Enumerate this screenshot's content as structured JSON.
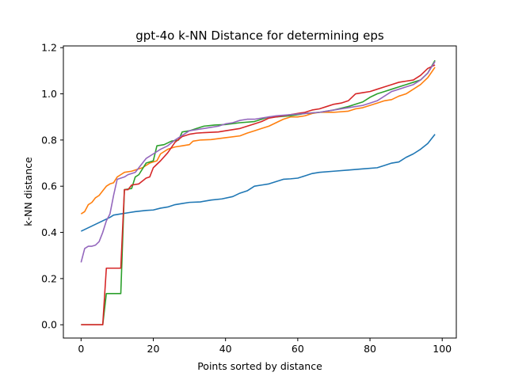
{
  "chart_data": {
    "type": "line",
    "title": "gpt-4o k-NN Distance for determining eps",
    "xlabel": "Points sorted by distance",
    "ylabel": "k-NN distance",
    "xlim": [
      -4.9,
      103.9
    ],
    "ylim": [
      -0.0575,
      1.2075
    ],
    "xticks": [
      0,
      20,
      40,
      60,
      80,
      100
    ],
    "yticks": [
      0.0,
      0.2,
      0.4,
      0.6,
      0.8,
      1.0,
      1.2
    ],
    "xtick_labels": [
      "0",
      "20",
      "40",
      "60",
      "80",
      "100"
    ],
    "ytick_labels": [
      "0.0",
      "0.2",
      "0.4",
      "0.6",
      "0.8",
      "1.0",
      "1.2"
    ],
    "grid": false,
    "legend": "none",
    "series": [
      {
        "color": "#1f77b4",
        "points": [
          [
            0,
            0.405
          ],
          [
            2,
            0.42
          ],
          [
            4,
            0.435
          ],
          [
            6,
            0.45
          ],
          [
            8,
            0.465
          ],
          [
            9,
            0.475
          ],
          [
            11,
            0.48
          ],
          [
            13,
            0.485
          ],
          [
            15,
            0.49
          ],
          [
            18,
            0.495
          ],
          [
            20,
            0.497
          ],
          [
            22,
            0.505
          ],
          [
            24,
            0.51
          ],
          [
            26,
            0.52
          ],
          [
            28,
            0.525
          ],
          [
            30,
            0.53
          ],
          [
            33,
            0.532
          ],
          [
            36,
            0.54
          ],
          [
            39,
            0.545
          ],
          [
            42,
            0.555
          ],
          [
            44,
            0.57
          ],
          [
            46,
            0.58
          ],
          [
            48,
            0.6
          ],
          [
            50,
            0.605
          ],
          [
            52,
            0.61
          ],
          [
            54,
            0.62
          ],
          [
            56,
            0.63
          ],
          [
            58,
            0.632
          ],
          [
            60,
            0.635
          ],
          [
            62,
            0.645
          ],
          [
            64,
            0.655
          ],
          [
            66,
            0.66
          ],
          [
            70,
            0.665
          ],
          [
            74,
            0.67
          ],
          [
            78,
            0.675
          ],
          [
            82,
            0.68
          ],
          [
            84,
            0.69
          ],
          [
            86,
            0.7
          ],
          [
            88,
            0.705
          ],
          [
            90,
            0.725
          ],
          [
            92,
            0.74
          ],
          [
            94,
            0.76
          ],
          [
            96,
            0.785
          ],
          [
            98,
            0.825
          ]
        ]
      },
      {
        "color": "#ff7f0e",
        "points": [
          [
            0,
            0.48
          ],
          [
            1,
            0.49
          ],
          [
            2,
            0.52
          ],
          [
            3,
            0.53
          ],
          [
            4,
            0.55
          ],
          [
            5,
            0.56
          ],
          [
            6,
            0.58
          ],
          [
            7,
            0.6
          ],
          [
            8,
            0.61
          ],
          [
            9,
            0.615
          ],
          [
            10,
            0.64
          ],
          [
            11,
            0.65
          ],
          [
            12,
            0.66
          ],
          [
            14,
            0.665
          ],
          [
            15,
            0.67
          ],
          [
            17,
            0.68
          ],
          [
            19,
            0.7
          ],
          [
            21,
            0.71
          ],
          [
            22,
            0.74
          ],
          [
            24,
            0.76
          ],
          [
            26,
            0.77
          ],
          [
            28,
            0.775
          ],
          [
            30,
            0.78
          ],
          [
            31,
            0.795
          ],
          [
            33,
            0.8
          ],
          [
            36,
            0.802
          ],
          [
            40,
            0.81
          ],
          [
            44,
            0.818
          ],
          [
            46,
            0.83
          ],
          [
            48,
            0.84
          ],
          [
            50,
            0.85
          ],
          [
            52,
            0.86
          ],
          [
            54,
            0.875
          ],
          [
            56,
            0.89
          ],
          [
            58,
            0.9
          ],
          [
            60,
            0.9
          ],
          [
            62,
            0.905
          ],
          [
            64,
            0.915
          ],
          [
            66,
            0.92
          ],
          [
            70,
            0.92
          ],
          [
            74,
            0.925
          ],
          [
            76,
            0.935
          ],
          [
            78,
            0.94
          ],
          [
            80,
            0.95
          ],
          [
            82,
            0.96
          ],
          [
            84,
            0.97
          ],
          [
            86,
            0.975
          ],
          [
            88,
            0.99
          ],
          [
            90,
            1.0
          ],
          [
            92,
            1.02
          ],
          [
            94,
            1.04
          ],
          [
            96,
            1.07
          ],
          [
            98,
            1.115
          ]
        ]
      },
      {
        "color": "#2ca02c",
        "points": [
          [
            0,
            0.0
          ],
          [
            6,
            0.0
          ],
          [
            7,
            0.135
          ],
          [
            11,
            0.135
          ],
          [
            12,
            0.585
          ],
          [
            14,
            0.59
          ],
          [
            15,
            0.64
          ],
          [
            16,
            0.65
          ],
          [
            18,
            0.7
          ],
          [
            20,
            0.71
          ],
          [
            21,
            0.775
          ],
          [
            23,
            0.78
          ],
          [
            25,
            0.795
          ],
          [
            27,
            0.8
          ],
          [
            28,
            0.835
          ],
          [
            30,
            0.84
          ],
          [
            32,
            0.85
          ],
          [
            34,
            0.86
          ],
          [
            37,
            0.865
          ],
          [
            40,
            0.867
          ],
          [
            44,
            0.875
          ],
          [
            48,
            0.88
          ],
          [
            50,
            0.89
          ],
          [
            52,
            0.9
          ],
          [
            54,
            0.9
          ],
          [
            58,
            0.905
          ],
          [
            60,
            0.91
          ],
          [
            62,
            0.915
          ],
          [
            66,
            0.92
          ],
          [
            70,
            0.93
          ],
          [
            74,
            0.945
          ],
          [
            76,
            0.955
          ],
          [
            78,
            0.965
          ],
          [
            80,
            0.985
          ],
          [
            82,
            1.0
          ],
          [
            84,
            1.01
          ],
          [
            86,
            1.02
          ],
          [
            88,
            1.03
          ],
          [
            90,
            1.04
          ],
          [
            92,
            1.05
          ],
          [
            94,
            1.06
          ],
          [
            96,
            1.09
          ],
          [
            98,
            1.145
          ]
        ]
      },
      {
        "color": "#d62728",
        "points": [
          [
            0,
            0.0
          ],
          [
            6,
            0.0
          ],
          [
            7,
            0.245
          ],
          [
            11,
            0.245
          ],
          [
            12,
            0.585
          ],
          [
            13,
            0.585
          ],
          [
            14,
            0.605
          ],
          [
            16,
            0.61
          ],
          [
            18,
            0.635
          ],
          [
            19,
            0.64
          ],
          [
            20,
            0.68
          ],
          [
            22,
            0.71
          ],
          [
            24,
            0.745
          ],
          [
            26,
            0.79
          ],
          [
            28,
            0.815
          ],
          [
            30,
            0.825
          ],
          [
            32,
            0.83
          ],
          [
            34,
            0.832
          ],
          [
            38,
            0.835
          ],
          [
            40,
            0.84
          ],
          [
            44,
            0.85
          ],
          [
            46,
            0.86
          ],
          [
            48,
            0.87
          ],
          [
            50,
            0.88
          ],
          [
            52,
            0.895
          ],
          [
            54,
            0.9
          ],
          [
            56,
            0.905
          ],
          [
            58,
            0.91
          ],
          [
            60,
            0.915
          ],
          [
            62,
            0.92
          ],
          [
            64,
            0.93
          ],
          [
            66,
            0.935
          ],
          [
            68,
            0.945
          ],
          [
            70,
            0.955
          ],
          [
            72,
            0.96
          ],
          [
            74,
            0.97
          ],
          [
            76,
            1.0
          ],
          [
            78,
            1.005
          ],
          [
            80,
            1.01
          ],
          [
            82,
            1.02
          ],
          [
            84,
            1.03
          ],
          [
            86,
            1.04
          ],
          [
            88,
            1.05
          ],
          [
            90,
            1.055
          ],
          [
            92,
            1.06
          ],
          [
            94,
            1.08
          ],
          [
            96,
            1.11
          ],
          [
            98,
            1.125
          ]
        ]
      },
      {
        "color": "#9467bd",
        "points": [
          [
            0,
            0.27
          ],
          [
            1,
            0.33
          ],
          [
            2,
            0.34
          ],
          [
            3,
            0.34
          ],
          [
            4,
            0.345
          ],
          [
            5,
            0.36
          ],
          [
            6,
            0.4
          ],
          [
            7,
            0.45
          ],
          [
            8,
            0.48
          ],
          [
            9,
            0.56
          ],
          [
            10,
            0.63
          ],
          [
            11,
            0.635
          ],
          [
            12,
            0.64
          ],
          [
            13,
            0.65
          ],
          [
            15,
            0.66
          ],
          [
            16,
            0.68
          ],
          [
            18,
            0.72
          ],
          [
            20,
            0.74
          ],
          [
            22,
            0.76
          ],
          [
            24,
            0.775
          ],
          [
            26,
            0.8
          ],
          [
            28,
            0.82
          ],
          [
            30,
            0.84
          ],
          [
            32,
            0.845
          ],
          [
            34,
            0.85
          ],
          [
            36,
            0.855
          ],
          [
            38,
            0.86
          ],
          [
            40,
            0.87
          ],
          [
            42,
            0.875
          ],
          [
            44,
            0.885
          ],
          [
            46,
            0.89
          ],
          [
            48,
            0.89
          ],
          [
            50,
            0.895
          ],
          [
            52,
            0.9
          ],
          [
            54,
            0.905
          ],
          [
            58,
            0.91
          ],
          [
            62,
            0.915
          ],
          [
            66,
            0.92
          ],
          [
            68,
            0.925
          ],
          [
            70,
            0.93
          ],
          [
            74,
            0.94
          ],
          [
            76,
            0.945
          ],
          [
            78,
            0.95
          ],
          [
            80,
            0.96
          ],
          [
            82,
            0.97
          ],
          [
            84,
            0.99
          ],
          [
            86,
            1.01
          ],
          [
            88,
            1.02
          ],
          [
            90,
            1.03
          ],
          [
            92,
            1.04
          ],
          [
            94,
            1.06
          ],
          [
            96,
            1.09
          ],
          [
            98,
            1.14
          ]
        ]
      }
    ]
  }
}
